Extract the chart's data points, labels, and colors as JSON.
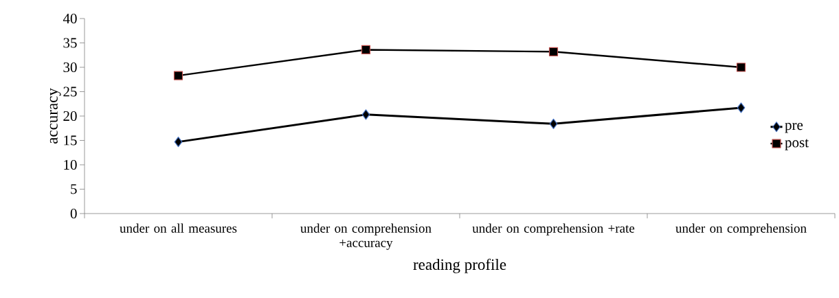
{
  "chart_data": {
    "type": "line",
    "xlabel": "reading profile",
    "ylabel": "accuracy",
    "categories": [
      "under on all measures",
      "under on comprehension +accuracy",
      "under on comprehension +rate",
      "under on comprehension"
    ],
    "series": [
      {
        "name": "pre",
        "color": "#000000",
        "marker": "diamond",
        "values": [
          14.7,
          20.3,
          18.4,
          21.7
        ]
      },
      {
        "name": "post",
        "color": "#000000",
        "marker": "square",
        "values": [
          28.3,
          33.6,
          33.2,
          30.0
        ]
      }
    ],
    "ylim": [
      0,
      40
    ],
    "yticks": [
      0,
      5,
      10,
      15,
      20,
      25,
      30,
      35,
      40
    ],
    "grid": false,
    "legend": "right",
    "line_style": "solid"
  }
}
